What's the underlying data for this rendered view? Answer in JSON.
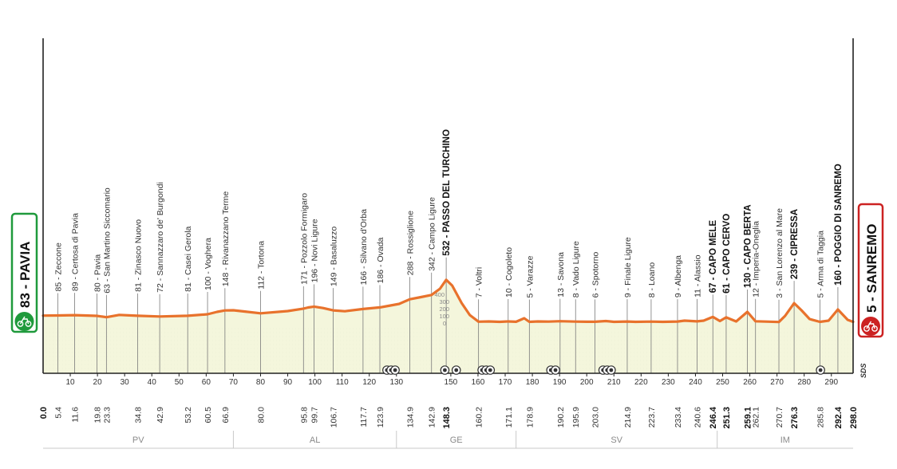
{
  "chart_data": {
    "type": "area",
    "xlim": [
      0,
      298
    ],
    "ylim": [
      0,
      700
    ],
    "profile_color": "#e8722c",
    "fill_color": "#f4f6dc",
    "start": {
      "km": "0.0",
      "elev": 83,
      "name": "83 - PAVIA",
      "box_color": "#1f9a3c"
    },
    "finish": {
      "km": "298.0",
      "elev": 5,
      "name": "5 - SANREMO",
      "box_color": "#cc2222"
    },
    "altitude_scale": {
      "labels": [
        "400",
        "300",
        "200",
        "100",
        "0"
      ]
    },
    "profile": [
      [
        0,
        83
      ],
      [
        5.4,
        85
      ],
      [
        11.6,
        89
      ],
      [
        19.8,
        80
      ],
      [
        23.3,
        63
      ],
      [
        28,
        92
      ],
      [
        34.8,
        81
      ],
      [
        42.9,
        72
      ],
      [
        53.2,
        81
      ],
      [
        60.5,
        100
      ],
      [
        64,
        130
      ],
      [
        66.9,
        148
      ],
      [
        70,
        150
      ],
      [
        74,
        135
      ],
      [
        80.0,
        112
      ],
      [
        90,
        140
      ],
      [
        95.8,
        171
      ],
      [
        97.5,
        185
      ],
      [
        99.7,
        196
      ],
      [
        103,
        178
      ],
      [
        106.7,
        149
      ],
      [
        111,
        138
      ],
      [
        117.7,
        166
      ],
      [
        123.9,
        186
      ],
      [
        127,
        205
      ],
      [
        131,
        230
      ],
      [
        134.9,
        288
      ],
      [
        139,
        315
      ],
      [
        142.9,
        342
      ],
      [
        146,
        420
      ],
      [
        148.3,
        532
      ],
      [
        150.5,
        460
      ],
      [
        154,
        240
      ],
      [
        157,
        90
      ],
      [
        160.2,
        7
      ],
      [
        164,
        10
      ],
      [
        168,
        5
      ],
      [
        171.1,
        10
      ],
      [
        174,
        6
      ],
      [
        177,
        50
      ],
      [
        178.9,
        5
      ],
      [
        182,
        10
      ],
      [
        186,
        8
      ],
      [
        190.2,
        13
      ],
      [
        195.9,
        8
      ],
      [
        200,
        6
      ],
      [
        203.0,
        6
      ],
      [
        207,
        15
      ],
      [
        210,
        5
      ],
      [
        214.9,
        9
      ],
      [
        218,
        5
      ],
      [
        223.7,
        8
      ],
      [
        228,
        5
      ],
      [
        233.4,
        9
      ],
      [
        236,
        20
      ],
      [
        240.6,
        11
      ],
      [
        243,
        20
      ],
      [
        246.4,
        67
      ],
      [
        249,
        15
      ],
      [
        251.3,
        61
      ],
      [
        255,
        10
      ],
      [
        259.1,
        130
      ],
      [
        262.1,
        12
      ],
      [
        266,
        8
      ],
      [
        270.7,
        3
      ],
      [
        273,
        80
      ],
      [
        276.3,
        239
      ],
      [
        279,
        150
      ],
      [
        282,
        40
      ],
      [
        285.8,
        5
      ],
      [
        289,
        20
      ],
      [
        292.4,
        160
      ],
      [
        296,
        30
      ],
      [
        298.0,
        5
      ]
    ],
    "x_ticks": [
      {
        "km": 10,
        "label": "10"
      },
      {
        "km": 20,
        "label": "20"
      },
      {
        "km": 30,
        "label": "30"
      },
      {
        "km": 40,
        "label": "40"
      },
      {
        "km": 50,
        "label": "50"
      },
      {
        "km": 60,
        "label": "60"
      },
      {
        "km": 70,
        "label": "70"
      },
      {
        "km": 80,
        "label": "80"
      },
      {
        "km": 90,
        "label": "90"
      },
      {
        "km": 100,
        "label": "100"
      },
      {
        "km": 110,
        "label": "110"
      },
      {
        "km": 120,
        "label": "120"
      },
      {
        "km": 130,
        "label": "130"
      },
      {
        "km": 150,
        "label": "150"
      },
      {
        "km": 160,
        "label": "160"
      },
      {
        "km": 170,
        "label": "170"
      },
      {
        "km": 180,
        "label": "180"
      },
      {
        "km": 190,
        "label": "190"
      },
      {
        "km": 200,
        "label": "200"
      },
      {
        "km": 210,
        "label": "210"
      },
      {
        "km": 220,
        "label": "220"
      },
      {
        "km": 230,
        "label": "230"
      },
      {
        "km": 240,
        "label": "240"
      },
      {
        "km": 250,
        "label": "250"
      },
      {
        "km": 260,
        "label": "260"
      },
      {
        "km": 270,
        "label": "270"
      },
      {
        "km": 280,
        "label": "280"
      },
      {
        "km": 290,
        "label": "290"
      }
    ],
    "waypoints": [
      {
        "km": 5.4,
        "km_label": "5.4",
        "label": "85 - Zeccone",
        "bold": false
      },
      {
        "km": 11.6,
        "km_label": "11.6",
        "label": "89 - Certosa di Pavia",
        "bold": false
      },
      {
        "km": 19.8,
        "km_label": "19.8",
        "label": "80 - Pavia",
        "bold": false
      },
      {
        "km": 23.3,
        "km_label": "23.3",
        "label": "63 - San Martino Siccomario",
        "bold": false
      },
      {
        "km": 34.8,
        "km_label": "34.8",
        "label": "81 - Zinasco Nuovo",
        "bold": false
      },
      {
        "km": 42.9,
        "km_label": "42.9",
        "label": "72 - Sannazzaro de' Burgondi",
        "bold": false
      },
      {
        "km": 53.2,
        "km_label": "53.2",
        "label": "81 - Casei Gerola",
        "bold": false
      },
      {
        "km": 60.5,
        "km_label": "60.5",
        "label": "100 - Voghera",
        "bold": false
      },
      {
        "km": 66.9,
        "km_label": "66.9",
        "label": "148 - Rivanazzano Terme",
        "bold": false
      },
      {
        "km": 80.0,
        "km_label": "80.0",
        "label": "112 - Tortona",
        "bold": false
      },
      {
        "km": 95.8,
        "km_label": "95.8",
        "label": "171 - Pozzolo Formigaro",
        "bold": false
      },
      {
        "km": 99.7,
        "km_label": "99.7",
        "label": "196 - Novi Ligure",
        "bold": false
      },
      {
        "km": 106.7,
        "km_label": "106.7",
        "label": "149 - Basaluzzo",
        "bold": false
      },
      {
        "km": 117.7,
        "km_label": "117.7",
        "label": "166 - Silvano d'Orba",
        "bold": false
      },
      {
        "km": 123.9,
        "km_label": "123.9",
        "label": "186 - Ovada",
        "bold": false
      },
      {
        "km": 134.9,
        "km_label": "134.9",
        "label": "288 - Rossiglione",
        "bold": false
      },
      {
        "km": 142.9,
        "km_label": "142.9",
        "label": "342 - Campo Ligure",
        "bold": false
      },
      {
        "km": 148.3,
        "km_label": "148.3",
        "label": "532 - PASSO DEL TURCHINO",
        "bold": true
      },
      {
        "km": 160.2,
        "km_label": "160.2",
        "label": "7 - Voltri",
        "bold": false
      },
      {
        "km": 171.1,
        "km_label": "171.1",
        "label": "10 - Cogoleto",
        "bold": false
      },
      {
        "km": 178.9,
        "km_label": "178.9",
        "label": "5 - Varazze",
        "bold": false
      },
      {
        "km": 190.2,
        "km_label": "190.2",
        "label": "13 - Savona",
        "bold": false
      },
      {
        "km": 195.9,
        "km_label": "195.9",
        "label": "8 - Vado Ligure",
        "bold": false
      },
      {
        "km": 203.0,
        "km_label": "203.0",
        "label": "6 - Spotorno",
        "bold": false
      },
      {
        "km": 214.9,
        "km_label": "214.9",
        "label": "9 - Finale Ligure",
        "bold": false
      },
      {
        "km": 223.7,
        "km_label": "223.7",
        "label": "8 - Loano",
        "bold": false
      },
      {
        "km": 233.4,
        "km_label": "233.4",
        "label": "9 - Albenga",
        "bold": false
      },
      {
        "km": 240.6,
        "km_label": "240.6",
        "label": "11 - Alassio",
        "bold": false
      },
      {
        "km": 246.4,
        "km_label": "246.4",
        "label": "67 - CAPO MELE",
        "bold": true
      },
      {
        "km": 251.3,
        "km_label": "251.3",
        "label": "61 - CAPO CERVO",
        "bold": true
      },
      {
        "km": 259.1,
        "km_label": "259.1",
        "label": "130 - CAPO BERTA",
        "bold": true
      },
      {
        "km": 262.1,
        "km_label": "262.1",
        "label": "12 - Imperia-Oneglia",
        "bold": false
      },
      {
        "km": 270.7,
        "km_label": "270.7",
        "label": "3 - San Lorenzo al Mare",
        "bold": false
      },
      {
        "km": 276.3,
        "km_label": "276.3",
        "label": "239 - CIPRESSA",
        "bold": true
      },
      {
        "km": 285.8,
        "km_label": "285.8",
        "label": "5 - Arma di Taggia",
        "bold": false
      },
      {
        "km": 292.4,
        "km_label": "292.4",
        "label": "160 - POGGIO DI SANREMO",
        "bold": true
      }
    ],
    "markers": [
      {
        "km": 126.5
      },
      {
        "km": 128.0
      },
      {
        "km": 129.5
      },
      {
        "km": 147.8
      },
      {
        "km": 152.0
      },
      {
        "km": 161.5
      },
      {
        "km": 163.0
      },
      {
        "km": 164.5
      },
      {
        "km": 186.8
      },
      {
        "km": 188.5
      },
      {
        "km": 206.0
      },
      {
        "km": 207.5
      },
      {
        "km": 209.0
      },
      {
        "km": 286.0
      }
    ],
    "regions": [
      {
        "name": "PV",
        "from": 0,
        "to": 70
      },
      {
        "name": "AL",
        "from": 70,
        "to": 130
      },
      {
        "name": "GE",
        "from": 130,
        "to": 174
      },
      {
        "name": "SV",
        "from": 174,
        "to": 248
      },
      {
        "name": "IM",
        "from": 248,
        "to": 298
      }
    ],
    "logo_text": "SDS"
  }
}
